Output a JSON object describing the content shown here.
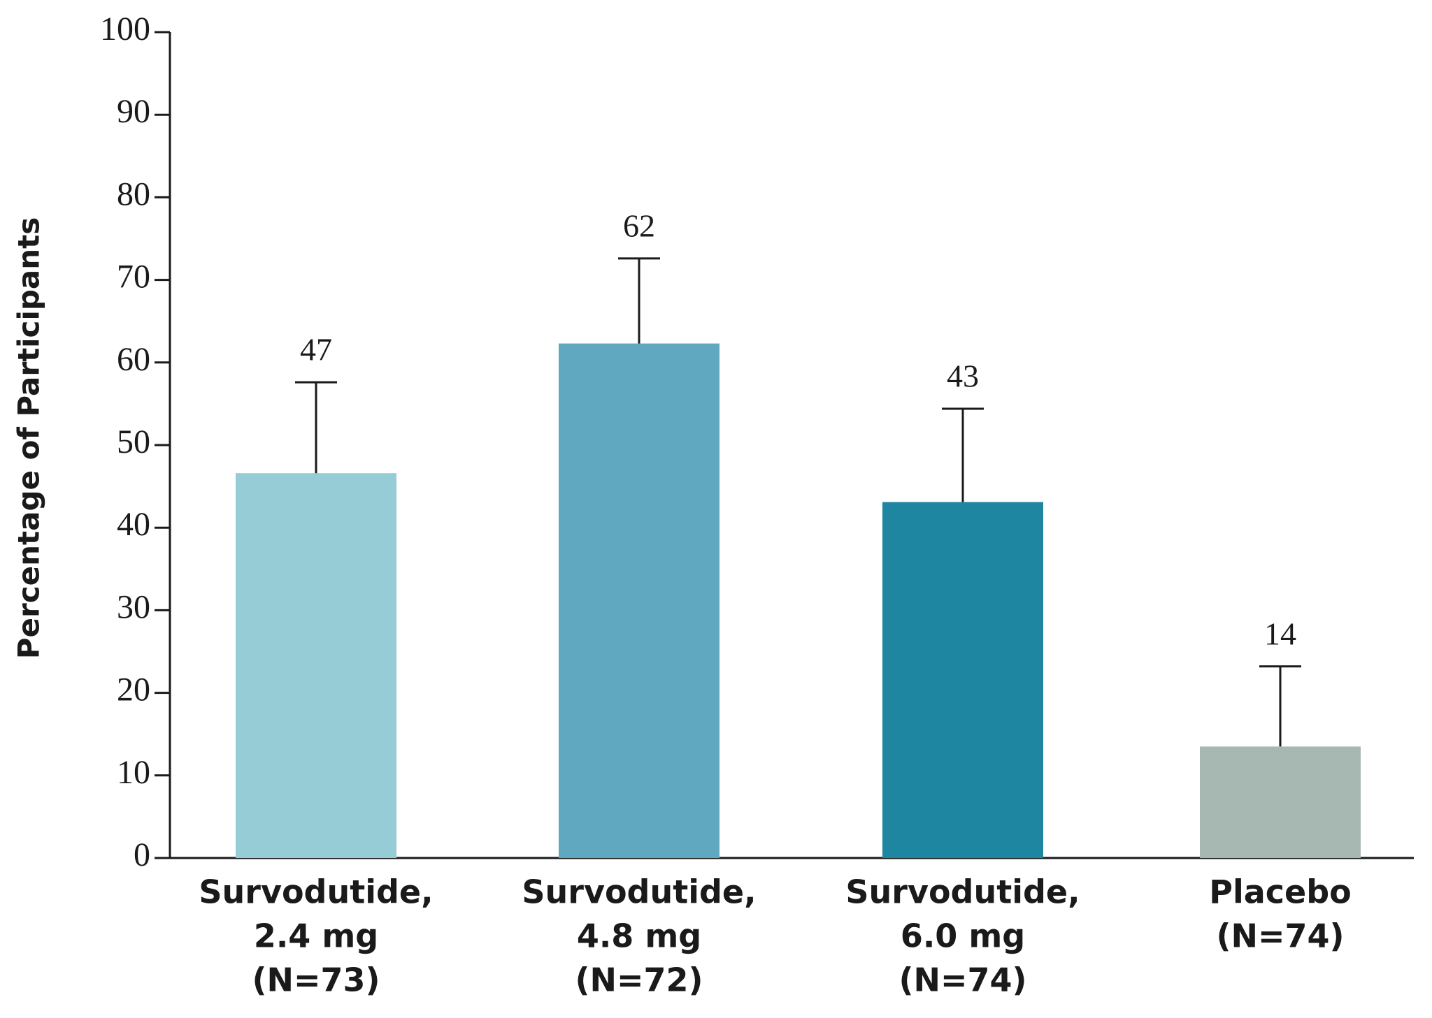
{
  "chart_data": {
    "type": "bar",
    "y_label": "Percentage of Participants",
    "categories": [
      [
        "Survodutide,",
        "2.4 mg",
        "(N=73)"
      ],
      [
        "Survodutide,",
        "4.8 mg",
        "(N=72)"
      ],
      [
        "Survodutide,",
        "6.0 mg",
        "(N=74)"
      ],
      [
        "Placebo",
        "(N=74)"
      ]
    ],
    "values": [
      46.6,
      62.3,
      43.1,
      13.5
    ],
    "value_labels": [
      "47",
      "62",
      "43",
      "14"
    ],
    "errors": [
      11.0,
      10.3,
      11.3,
      9.7
    ],
    "colors": [
      "#96ccd6",
      "#5fa8c0",
      "#1f86a2",
      "#a7b8b2"
    ],
    "ylim": [
      0,
      100
    ],
    "yticks": [
      0,
      10,
      20,
      30,
      40,
      50,
      60,
      70,
      80,
      90,
      100
    ],
    "grid": false
  }
}
